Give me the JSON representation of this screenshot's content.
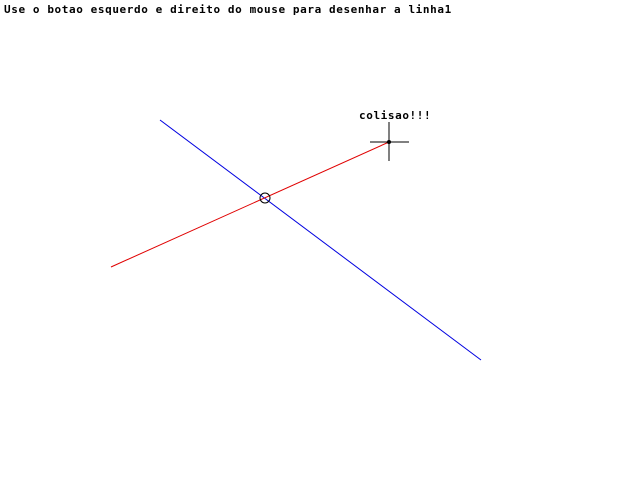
{
  "instruction": "Use o botao esquerdo e direito do mouse para desenhar a linha1",
  "collision_label": "colisao!!!",
  "colors": {
    "background": "#ffffff",
    "text": "#000000",
    "line_left_button": "#e00000",
    "line_right_button": "#0000e0",
    "marker": "#000000"
  },
  "icons": {
    "intersection": "circle-marker-icon",
    "cursor": "crosshair-cursor-icon"
  }
}
